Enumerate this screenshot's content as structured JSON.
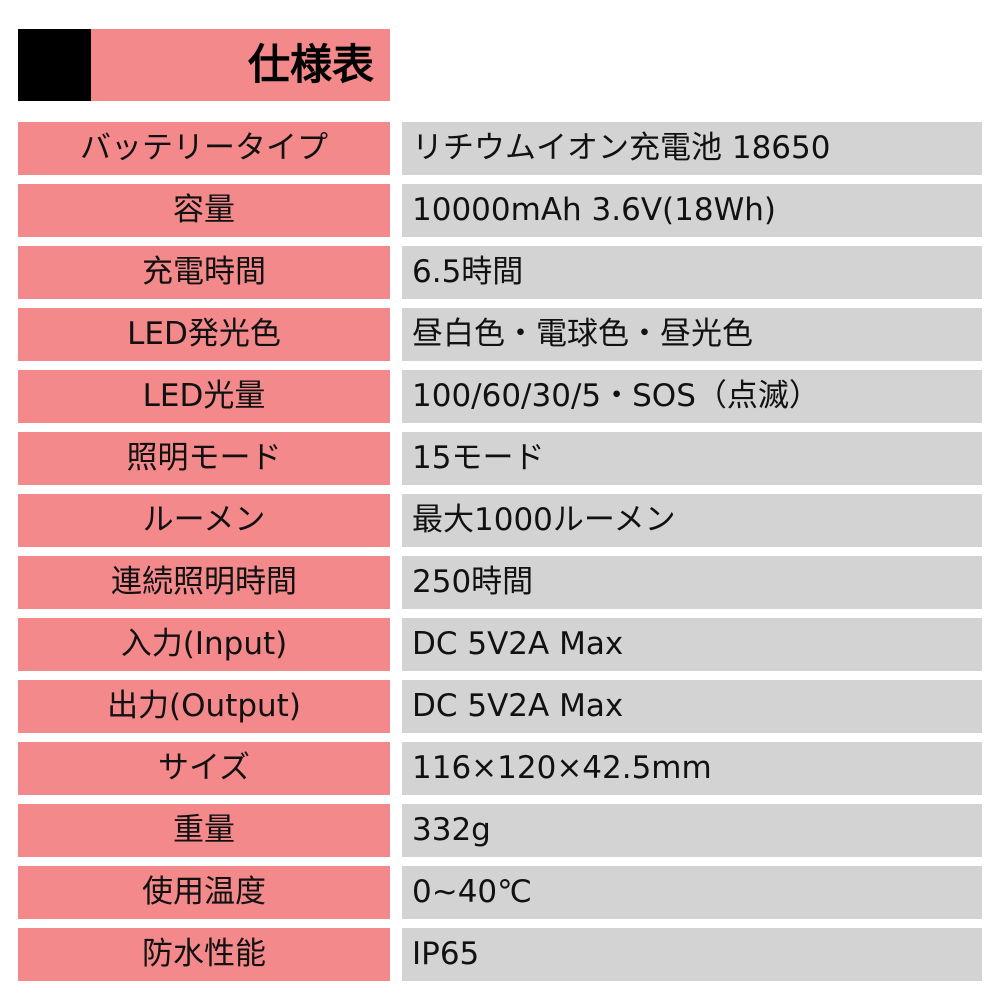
{
  "title": "仕様表",
  "colors": {
    "accent": "#f3898b",
    "value_bg": "#d3d3d3",
    "block": "#000000"
  },
  "rows": [
    {
      "label": "バッテリータイプ",
      "value": "リチウムイオン充電池 18650"
    },
    {
      "label": "容量",
      "value": "10000mAh 3.6V(18Wh)"
    },
    {
      "label": "充電時間",
      "value": "6.5時間"
    },
    {
      "label": "LED発光色",
      "value": "昼白色・電球色・昼光色"
    },
    {
      "label": "LED光量",
      "value": "100/60/30/5・SOS（点滅）"
    },
    {
      "label": "照明モード",
      "value": "15モード"
    },
    {
      "label": "ルーメン",
      "value": "最大1000ルーメン"
    },
    {
      "label": "連続照明時間",
      "value": "250時間"
    },
    {
      "label": "入力(Input)",
      "value": "DC 5V2A Max"
    },
    {
      "label": "出力(Output)",
      "value": "DC 5V2A Max"
    },
    {
      "label": "サイズ",
      "value": "116×120×42.5mm"
    },
    {
      "label": "重量",
      "value": "332g"
    },
    {
      "label": "使用温度",
      "value": "0~40℃"
    },
    {
      "label": "防水性能",
      "value": "IP65"
    }
  ]
}
